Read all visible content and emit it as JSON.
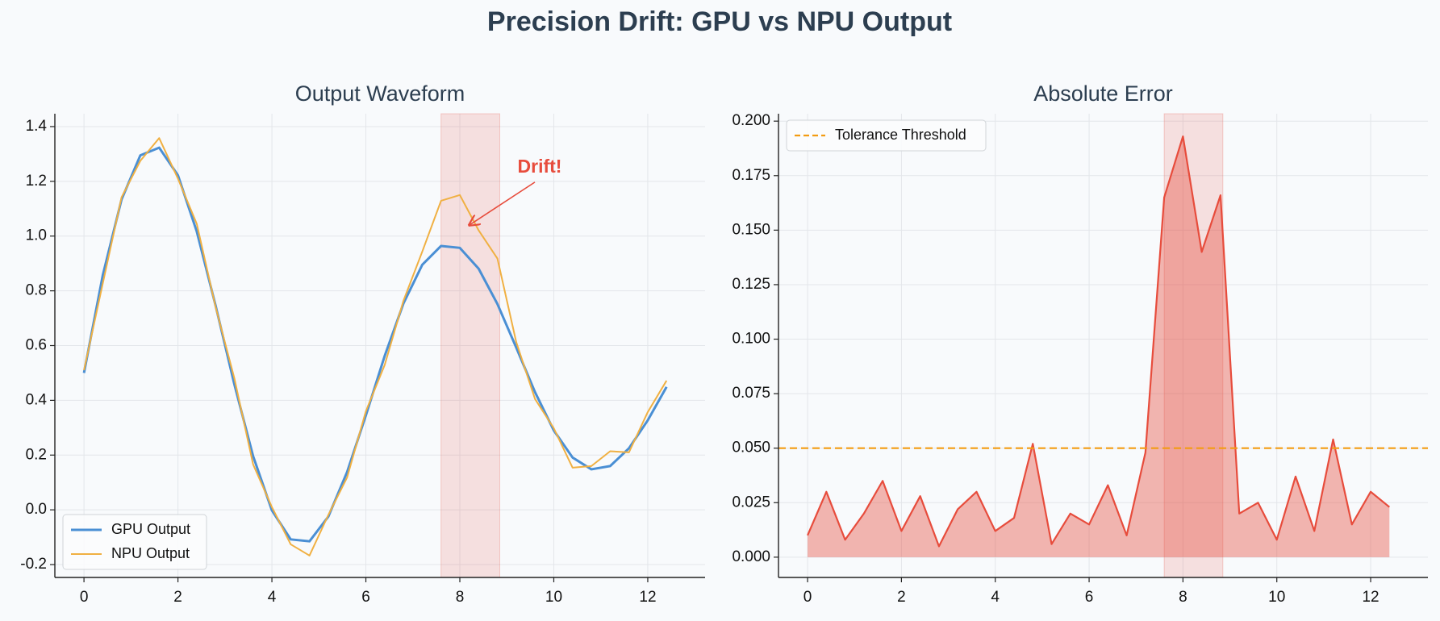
{
  "title": "Precision Drift: GPU vs NPU Output",
  "chart_data": [
    {
      "type": "line",
      "title": "Output Waveform",
      "x": [
        0,
        0.4,
        0.8,
        1.2,
        1.6,
        2.0,
        2.4,
        2.8,
        3.2,
        3.6,
        4.0,
        4.4,
        4.8,
        5.2,
        5.6,
        6.0,
        6.4,
        6.8,
        7.2,
        7.6,
        8.0,
        8.4,
        8.8,
        9.2,
        9.6,
        10.0,
        10.4,
        10.8,
        11.2,
        11.6,
        12.0,
        12.4
      ],
      "series": [
        {
          "name": "GPU Output",
          "color": "#4a8fd4",
          "width": 3,
          "values": [
            0.5,
            0.857,
            1.134,
            1.295,
            1.323,
            1.222,
            1.017,
            0.747,
            0.459,
            0.196,
            -0.002,
            -0.108,
            -0.115,
            -0.025,
            0.138,
            0.345,
            0.562,
            0.754,
            0.895,
            0.964,
            0.957,
            0.881,
            0.752,
            0.593,
            0.43,
            0.29,
            0.191,
            0.148,
            0.16,
            0.225,
            0.327,
            0.449
          ]
        },
        {
          "name": "NPU Output",
          "color": "#f0b042",
          "width": 2,
          "values": [
            0.51,
            0.827,
            1.142,
            1.275,
            1.358,
            1.21,
            1.045,
            0.742,
            0.481,
            0.166,
            0.01,
            -0.126,
            -0.167,
            -0.019,
            0.118,
            0.36,
            0.529,
            0.764,
            0.943,
            1.129,
            1.15,
            1.021,
            0.918,
            0.613,
            0.405,
            0.298,
            0.154,
            0.16,
            0.214,
            0.21,
            0.357,
            0.472
          ]
        }
      ],
      "xlim": [
        -0.62,
        13.22
      ],
      "ylim": [
        -0.247,
        1.447
      ],
      "xticks": [
        0,
        2,
        4,
        6,
        8,
        10,
        12
      ],
      "yticks": [
        -0.2,
        {
          "value": 0,
          "label": "0.0"
        },
        0.2,
        0.4,
        0.6,
        0.8,
        {
          "value": 1,
          "label": "1.0"
        },
        1.2,
        1.4
      ],
      "grid": true,
      "legend": "lower left",
      "highlight_span": [
        7.6,
        8.85
      ],
      "highlight_color": "#e74c3c",
      "annotation": {
        "text": "Drift!",
        "x": 9.7,
        "y": 1.25,
        "arrow_x": 8.2,
        "arrow_y": 1.04,
        "color": "#e74c3c"
      }
    },
    {
      "type": "area",
      "title": "Absolute Error",
      "x": [
        0,
        0.4,
        0.8,
        1.2,
        1.6,
        2.0,
        2.4,
        2.8,
        3.2,
        3.6,
        4.0,
        4.4,
        4.8,
        5.2,
        5.6,
        6.0,
        6.4,
        6.8,
        7.2,
        7.6,
        8.0,
        8.4,
        8.8,
        9.2,
        9.6,
        10.0,
        10.4,
        10.8,
        11.2,
        11.6,
        12.0,
        12.4
      ],
      "series": [
        {
          "color": "#e74c3c",
          "values": [
            0.01,
            0.03,
            0.008,
            0.02,
            0.035,
            0.012,
            0.028,
            0.005,
            0.022,
            0.03,
            0.012,
            0.018,
            0.052,
            0.006,
            0.02,
            0.015,
            0.033,
            0.01,
            0.048,
            0.165,
            0.193,
            0.14,
            0.166,
            0.02,
            0.025,
            0.008,
            0.037,
            0.012,
            0.054,
            0.015,
            0.03,
            0.023
          ]
        }
      ],
      "reference_lines": [
        {
          "name": "Tolerance Threshold",
          "value": 0.05,
          "color": "#f39c12"
        }
      ],
      "xlim": [
        -0.62,
        13.22
      ],
      "ylim": [
        -0.0093,
        0.2034
      ],
      "xticks": [
        0,
        2,
        4,
        6,
        8,
        10,
        12
      ],
      "yticks": [
        {
          "value": 0,
          "label": "0.000"
        },
        0.025,
        {
          "value": 0.05,
          "label": "0.050"
        },
        0.075,
        {
          "value": 0.1,
          "label": "0.100"
        },
        0.125,
        {
          "value": 0.15,
          "label": "0.150"
        },
        0.175,
        {
          "value": 0.2,
          "label": "0.200"
        }
      ],
      "grid": true,
      "legend": "upper left",
      "highlight_span": [
        7.6,
        8.85
      ],
      "highlight_color": "#e74c3c"
    }
  ]
}
